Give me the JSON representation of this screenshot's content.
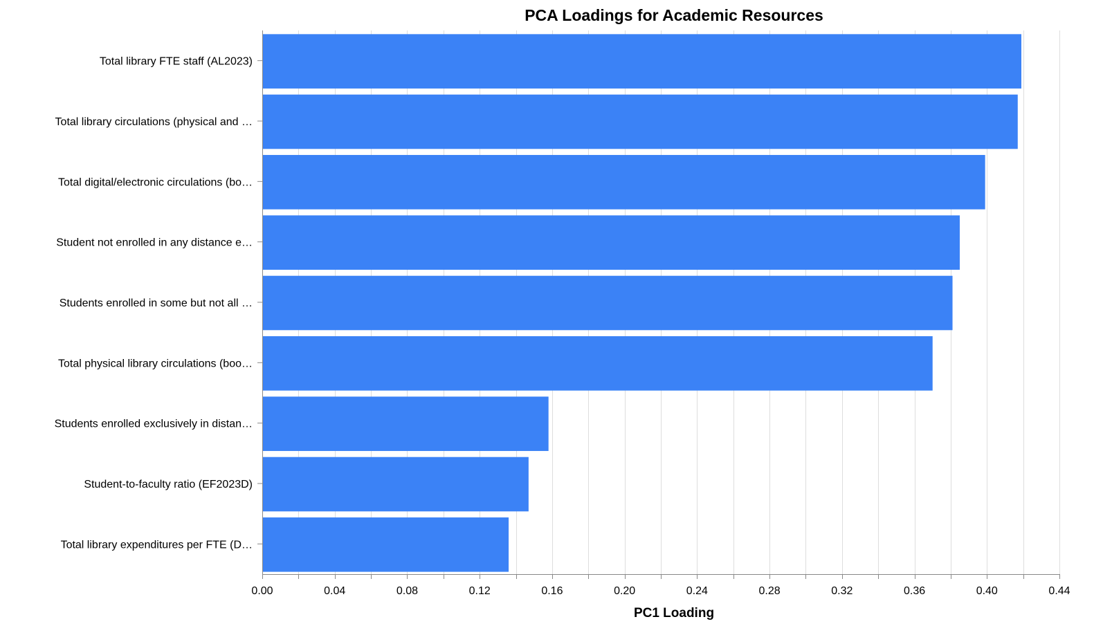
{
  "chart_data": {
    "type": "bar",
    "orientation": "horizontal",
    "title": "PCA Loadings for Academic Resources",
    "xlabel": "PC1 Loading",
    "ylabel": "",
    "xlim": [
      0,
      0.44
    ],
    "x_ticks": [
      "0.00",
      "0.04",
      "0.08",
      "0.12",
      "0.16",
      "0.20",
      "0.24",
      "0.28",
      "0.32",
      "0.36",
      "0.40",
      "0.44"
    ],
    "grid": true,
    "color": "#3b82f6",
    "categories": [
      "Total library FTE staff (AL2023)",
      "Total library circulations (physical and …",
      "Total digital/electronic circulations (bo…",
      "Student not enrolled in any distance e…",
      "Students enrolled in some but not all …",
      "Total physical library circulations (boo…",
      "Students enrolled exclusively in distan…",
      "Student-to-faculty ratio (EF2023D)",
      "Total library expenditures per FTE (D…"
    ],
    "values": [
      0.419,
      0.417,
      0.399,
      0.385,
      0.381,
      0.37,
      0.158,
      0.147,
      0.136
    ]
  }
}
